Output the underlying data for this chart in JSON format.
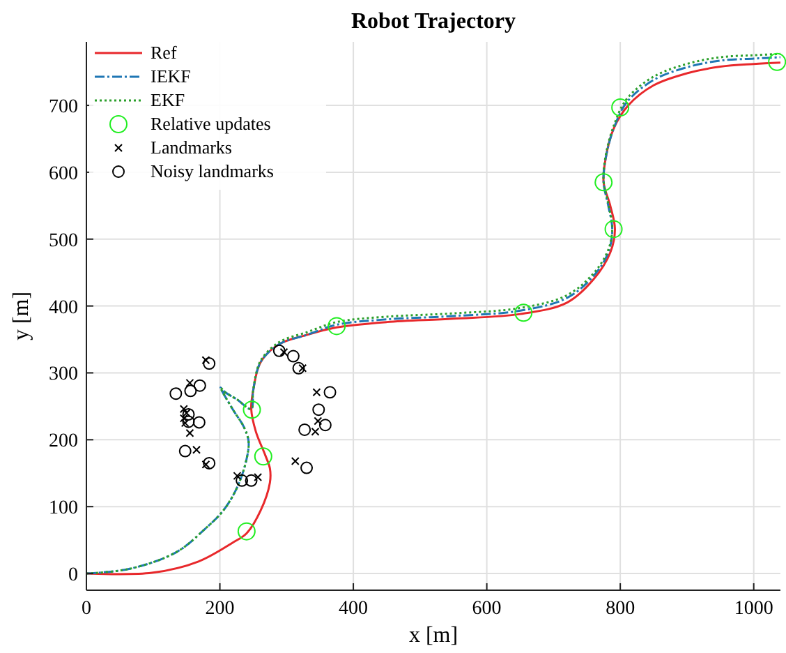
{
  "chart_data": {
    "type": "line",
    "title": "Robot Trajectory",
    "xlabel": "x [m]",
    "ylabel": "y [m]",
    "xlim": [
      0,
      1040
    ],
    "ylim": [
      -25,
      795
    ],
    "xticks": [
      0,
      200,
      400,
      600,
      800,
      1000
    ],
    "yticks": [
      0,
      100,
      200,
      300,
      400,
      500,
      600,
      700
    ],
    "grid": true,
    "legend": "top left",
    "series": [
      {
        "name": "Ref",
        "color": "#e8282b",
        "line_style": "solid",
        "marker": "none",
        "x": [
          0,
          98,
          168,
          219,
          240,
          261,
          275,
          275,
          268,
          254,
          247,
          250,
          261,
          289,
          331,
          375,
          450,
          550,
          650,
          720,
          760,
          785,
          792,
          785,
          775,
          778,
          790,
          812,
          850,
          900,
          950,
          1000,
          1040
        ],
        "values": [
          0,
          1,
          18,
          46,
          60,
          94,
          136,
          157,
          177,
          212,
          246,
          274,
          316,
          343,
          357,
          368,
          376,
          381,
          388,
          405,
          440,
          480,
          515,
          550,
          585,
          620,
          665,
          700,
          730,
          748,
          758,
          762,
          764
        ]
      },
      {
        "name": "IEKF",
        "color": "#1f77b4",
        "line_style": "dashed",
        "marker": "none",
        "x": [
          0,
          65,
          135,
          177,
          205,
          226,
          240,
          243,
          236,
          219,
          201,
          208,
          226,
          247,
          250,
          261,
          289,
          331,
          375,
          450,
          550,
          650,
          720,
          760,
          782,
          788,
          782,
          775,
          778,
          790,
          810,
          850,
          900,
          950,
          1000,
          1040
        ],
        "values": [
          0,
          7,
          32,
          66,
          94,
          129,
          171,
          198,
          219,
          246,
          278,
          271,
          260,
          246,
          274,
          316,
          343,
          357,
          372,
          380,
          385,
          393,
          412,
          445,
          480,
          515,
          550,
          585,
          620,
          665,
          705,
          738,
          757,
          767,
          770,
          772
        ]
      },
      {
        "name": "EKF",
        "color": "#2ca02c",
        "line_style": "dotted",
        "marker": "none",
        "x": [
          0,
          65,
          135,
          177,
          205,
          226,
          240,
          243,
          236,
          219,
          201,
          208,
          226,
          247,
          250,
          261,
          289,
          331,
          375,
          450,
          550,
          650,
          720,
          760,
          782,
          788,
          782,
          775,
          778,
          790,
          810,
          850,
          900,
          950,
          1000,
          1040
        ],
        "values": [
          0,
          7,
          32,
          66,
          94,
          129,
          171,
          198,
          219,
          246,
          278,
          271,
          260,
          246,
          275,
          318,
          346,
          361,
          376,
          384,
          389,
          397,
          416,
          449,
          484,
          518,
          553,
          588,
          624,
          669,
          710,
          743,
          762,
          772,
          775,
          777
        ]
      },
      {
        "name": "Relative updates",
        "type": "scatter",
        "color": "#22ee22",
        "marker": "circle",
        "x": [
          240,
          265,
          248,
          375,
          655,
          775,
          790,
          800,
          1035
        ],
        "values": [
          63,
          175,
          245,
          370,
          390,
          585,
          515,
          697,
          765
        ]
      },
      {
        "name": "Landmarks",
        "type": "scatter",
        "color": "#000000",
        "marker": "cross",
        "x": [
          179,
          155,
          146,
          146,
          155,
          165,
          179,
          226,
          257,
          296,
          324,
          345,
          343,
          347,
          313,
          150,
          148
        ],
        "values": [
          319,
          285,
          246,
          232,
          210,
          185,
          163,
          146,
          144,
          331,
          307,
          271,
          212,
          228,
          168,
          240,
          225
        ]
      },
      {
        "name": "Noisy landmarks",
        "type": "scatter",
        "color": "#000000",
        "marker": "circle",
        "x": [
          184,
          170,
          156,
          134,
          153,
          153,
          169,
          148,
          184,
          233,
          247,
          289,
          310,
          318,
          365,
          348,
          358,
          327,
          330
        ],
        "values": [
          314,
          281,
          273,
          269,
          238,
          227,
          226,
          183,
          165,
          139,
          139,
          333,
          325,
          307,
          271,
          245,
          222,
          215,
          158
        ]
      }
    ]
  }
}
